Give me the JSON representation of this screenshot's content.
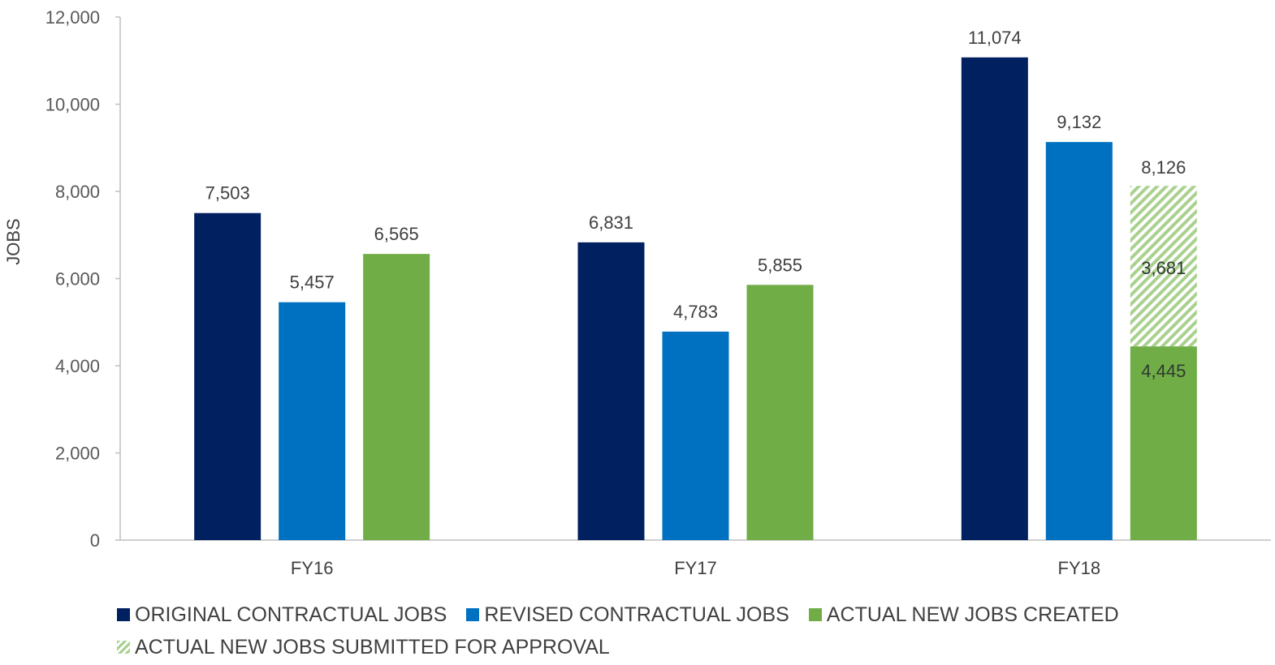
{
  "chart_data": {
    "type": "bar",
    "categories": [
      "FY16",
      "FY17",
      "FY18"
    ],
    "series": [
      {
        "name": "ORIGINAL CONTRACTUAL JOBS",
        "values": [
          7503,
          6831,
          11074
        ],
        "labels": [
          "7,503",
          "6,831",
          "11,074"
        ],
        "color": "#002060"
      },
      {
        "name": "REVISED CONTRACTUAL JOBS",
        "values": [
          5457,
          4783,
          9132
        ],
        "labels": [
          "5,457",
          "4,783",
          "9,132"
        ],
        "color": "#0070c0"
      },
      {
        "name": "ACTUAL NEW JOBS CREATED",
        "values": [
          6565,
          5855,
          4445
        ],
        "labels": [
          "6,565",
          "5,855",
          "4,445"
        ],
        "color": "#70ad47"
      },
      {
        "name": "ACTUAL NEW JOBS SUBMITTED FOR APPROVAL",
        "values": [
          null,
          null,
          3681
        ],
        "labels": [
          null,
          null,
          "3,681"
        ],
        "color": "#a9d18e",
        "pattern": "diagonal-hatch",
        "stacked_on": "ACTUAL NEW JOBS CREATED"
      }
    ],
    "stack_total_labels": [
      null,
      null,
      "8,126"
    ],
    "ylabel": "JOBS",
    "xlabel": "",
    "ylim": [
      0,
      12000
    ],
    "yticks": [
      0,
      2000,
      4000,
      6000,
      8000,
      10000,
      12000
    ],
    "ytick_labels": [
      "0",
      "2,000",
      "4,000",
      "6,000",
      "8,000",
      "10,000",
      "12,000"
    ],
    "grid": false,
    "legend_position": "bottom"
  }
}
